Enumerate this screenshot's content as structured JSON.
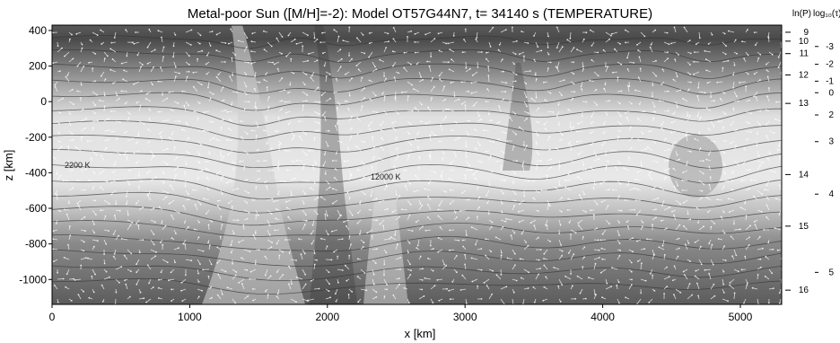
{
  "chart_data": {
    "type": "heatmap",
    "title": "Metal-poor Sun ([M/H]=-2): Model OT57G44N7, t= 34140 s   (TEMPERATURE)",
    "xlabel": "x [km]",
    "ylabel": "z [km]",
    "xlim": [
      0,
      5300
    ],
    "ylim": [
      -1140,
      430
    ],
    "x_ticks": [
      0,
      1000,
      2000,
      3000,
      4000,
      5000
    ],
    "y_ticks": [
      400,
      200,
      0,
      -200,
      -400,
      -600,
      -800,
      -1000
    ],
    "right_axis_1": {
      "label": "ln(P)",
      "ticks": [
        {
          "label": "9",
          "z": 390
        },
        {
          "label": "10",
          "z": 340
        },
        {
          "label": "11",
          "z": 270
        },
        {
          "label": "12",
          "z": 150
        },
        {
          "label": "13",
          "z": -10
        },
        {
          "label": "14",
          "z": -410
        },
        {
          "label": "15",
          "z": -700
        },
        {
          "label": "16",
          "z": -1060
        }
      ]
    },
    "right_axis_2": {
      "label": "log₁₀(τ)",
      "ticks": [
        {
          "label": "-3",
          "z": 310
        },
        {
          "label": "-2",
          "z": 210
        },
        {
          "label": "-1",
          "z": 115
        },
        {
          "label": "0",
          "z": 50
        },
        {
          "label": "2",
          "z": -75
        },
        {
          "label": "3",
          "z": -225
        },
        {
          "label": "4",
          "z": -520
        },
        {
          "label": "5",
          "z": -960
        }
      ]
    },
    "contour_labels": [
      {
        "text": "2200 K",
        "x": 80,
        "z": -300
      },
      {
        "text": "12000 K",
        "x": 2320,
        "z": -530
      }
    ],
    "grayscale_note": "lighter = hotter",
    "colors": {
      "hot": "#e6e6e6",
      "cool": "#4a4a4a",
      "contour": "#333333",
      "velocity_arrows": "#ffffff"
    }
  }
}
